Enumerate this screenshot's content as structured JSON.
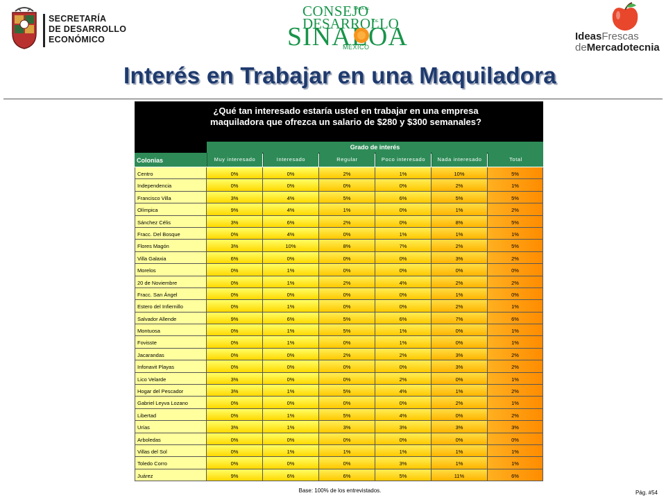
{
  "header": {
    "left_logo_lines": [
      "SECRETARÍA",
      "DE DESARROLLO",
      "ECONÓMICO"
    ],
    "center_logo": {
      "line1": "CONSEJO",
      "small1": "PARA EL",
      "line2": "DESARROLLO",
      "small2": "DE",
      "line3": "SINALOA",
      "line4": "MÉXICO"
    },
    "right_logo": {
      "ideas": "Ideas",
      "frescas": "Frescas",
      "de": "de",
      "mercadotecnia": "Mercadotecnia"
    }
  },
  "title": "Interés en Trabajar en una Maquiladora",
  "table": {
    "question_line1": "¿Qué tan interesado estaría usted en trabajar en una empresa",
    "question_line2": "maquiladora que ofrezca un salario de $280 y $300 semanales?",
    "group_header": "Grado de interés",
    "row_header": "Colonias",
    "columns": [
      "Muy interesado",
      "Interesado",
      "Regular",
      "Poco interesado",
      "Nada interesado",
      "Total"
    ],
    "rows": [
      {
        "name": "Centro",
        "values": [
          "0%",
          "0%",
          "2%",
          "1%",
          "10%",
          "5%"
        ]
      },
      {
        "name": "Independencia",
        "values": [
          "0%",
          "0%",
          "0%",
          "0%",
          "2%",
          "1%"
        ]
      },
      {
        "name": "Francisco Villa",
        "values": [
          "3%",
          "4%",
          "5%",
          "6%",
          "5%",
          "5%"
        ]
      },
      {
        "name": "Olímpica",
        "values": [
          "9%",
          "4%",
          "1%",
          "0%",
          "1%",
          "2%"
        ]
      },
      {
        "name": "Sánchez Célis",
        "values": [
          "3%",
          "6%",
          "2%",
          "0%",
          "8%",
          "5%"
        ]
      },
      {
        "name": "Fracc. Del Bosque",
        "values": [
          "0%",
          "4%",
          "0%",
          "1%",
          "1%",
          "1%"
        ]
      },
      {
        "name": "Flores Magón",
        "values": [
          "3%",
          "10%",
          "8%",
          "7%",
          "2%",
          "5%"
        ]
      },
      {
        "name": "Villa Galaxia",
        "values": [
          "6%",
          "0%",
          "0%",
          "0%",
          "3%",
          "2%"
        ]
      },
      {
        "name": "Morelos",
        "values": [
          "0%",
          "1%",
          "0%",
          "0%",
          "0%",
          "0%"
        ]
      },
      {
        "name": "20 de Noviembre",
        "values": [
          "0%",
          "1%",
          "2%",
          "4%",
          "2%",
          "2%"
        ]
      },
      {
        "name": "Fracc. San Ángel",
        "values": [
          "0%",
          "0%",
          "0%",
          "0%",
          "1%",
          "0%"
        ]
      },
      {
        "name": "Estero del Infiernillo",
        "values": [
          "0%",
          "1%",
          "0%",
          "0%",
          "2%",
          "1%"
        ]
      },
      {
        "name": "Salvador Allende",
        "values": [
          "9%",
          "6%",
          "5%",
          "6%",
          "7%",
          "6%"
        ]
      },
      {
        "name": "Montuosa",
        "values": [
          "0%",
          "1%",
          "5%",
          "1%",
          "0%",
          "1%"
        ]
      },
      {
        "name": "Fovisste",
        "values": [
          "0%",
          "1%",
          "0%",
          "1%",
          "0%",
          "1%"
        ]
      },
      {
        "name": "Jacarandas",
        "values": [
          "0%",
          "0%",
          "2%",
          "2%",
          "3%",
          "2%"
        ]
      },
      {
        "name": "Infonavit Playas",
        "values": [
          "0%",
          "0%",
          "0%",
          "0%",
          "3%",
          "2%"
        ]
      },
      {
        "name": "Lico Velarde",
        "values": [
          "3%",
          "0%",
          "0%",
          "2%",
          "0%",
          "1%"
        ]
      },
      {
        "name": "Hogar del Pescador",
        "values": [
          "3%",
          "1%",
          "5%",
          "4%",
          "1%",
          "2%"
        ]
      },
      {
        "name": "Gabriel Leyva Lozano",
        "values": [
          "0%",
          "0%",
          "0%",
          "0%",
          "2%",
          "1%"
        ]
      },
      {
        "name": "Libertad",
        "values": [
          "0%",
          "1%",
          "5%",
          "4%",
          "0%",
          "2%"
        ]
      },
      {
        "name": "Urías",
        "values": [
          "3%",
          "1%",
          "3%",
          "3%",
          "3%",
          "3%"
        ]
      },
      {
        "name": "Arboledas",
        "values": [
          "0%",
          "0%",
          "0%",
          "0%",
          "0%",
          "0%"
        ]
      },
      {
        "name": "Villas del Sol",
        "values": [
          "0%",
          "1%",
          "1%",
          "1%",
          "1%",
          "1%"
        ]
      },
      {
        "name": "Toledo Corro",
        "values": [
          "0%",
          "0%",
          "0%",
          "3%",
          "1%",
          "1%"
        ]
      },
      {
        "name": "Juárez",
        "values": [
          "9%",
          "6%",
          "6%",
          "5%",
          "11%",
          "6%"
        ]
      }
    ]
  },
  "footer": {
    "base": "Base: 100% de los entrevistados.",
    "page": "Pág. #54"
  }
}
